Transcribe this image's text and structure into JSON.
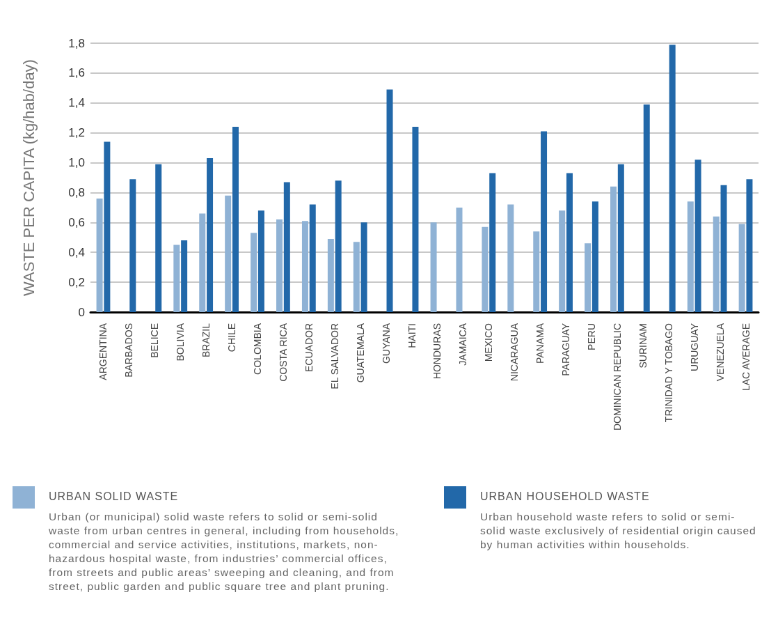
{
  "chart_data": {
    "type": "bar",
    "ylabel": "WASTE PER CAPITA (kg/hab/day)",
    "categories": [
      "ARGENTINA",
      "BARBADOS",
      "BELICE",
      "BOLIVIA",
      "BRAZIL",
      "CHILE",
      "COLOMBIA",
      "COSTA RICA",
      "ECUADOR",
      "EL SALVADOR",
      "GUATEMALA",
      "GUYANA",
      "HAITI",
      "HONDURAS",
      "JAMAICA",
      "MEXICO",
      "NICARAGUA",
      "PANAMA",
      "PARAGUAY",
      "PERU",
      "DOMINICAN REPUBLIC",
      "SURINAM",
      "TRINIDAD Y TOBAGO",
      "URUGUAY",
      "VENEZUELA",
      "LAC AVERAGE"
    ],
    "series": [
      {
        "name": "URBAN SOLID WASTE",
        "color": "#8fb2d5",
        "values": [
          0.76,
          null,
          null,
          0.45,
          0.66,
          0.78,
          0.53,
          0.62,
          0.61,
          0.49,
          0.47,
          null,
          null,
          0.6,
          0.7,
          0.57,
          0.72,
          0.54,
          0.68,
          0.46,
          0.84,
          null,
          null,
          0.74,
          0.64,
          0.59
        ]
      },
      {
        "name": "URBAN HOUSEHOLD WASTE",
        "color": "#2268a9",
        "values": [
          1.14,
          0.89,
          0.99,
          0.48,
          1.03,
          1.24,
          0.68,
          0.87,
          0.72,
          0.88,
          0.6,
          1.49,
          1.24,
          null,
          null,
          0.93,
          null,
          1.21,
          0.93,
          0.74,
          0.99,
          1.39,
          1.79,
          1.02,
          0.85,
          0.89
        ]
      }
    ],
    "ylim": [
      0,
      1.8
    ],
    "yticks": [
      0,
      {
        "value": 0.2,
        "label": "0,2"
      },
      {
        "value": 0.4,
        "label": "0,4"
      },
      {
        "value": 0.6,
        "label": "0,6"
      },
      {
        "value": 0.8,
        "label": "0,8"
      },
      {
        "value": 1.0,
        "label": "1,0"
      },
      {
        "value": 1.2,
        "label": "1,2"
      },
      {
        "value": 1.4,
        "label": "1,4"
      },
      {
        "value": 1.6,
        "label": "1,6"
      },
      {
        "value": 1.8,
        "label": "1,8"
      }
    ],
    "grid": "y",
    "legend": "bottom",
    "annotations": [
      "Urban (or municipal) solid waste refers to solid or semi-solid waste from urban centres in general, including from households, commercial and service activities, institutions, markets, non-hazardous hospital waste, from industries’ commercial offices, from streets and public areas’ sweeping and cleaning, and from street, public garden and public square tree and plant pruning.",
      "Urban household waste refers to solid or semi-solid waste exclusively of residential origin caused by human activities within households."
    ]
  }
}
